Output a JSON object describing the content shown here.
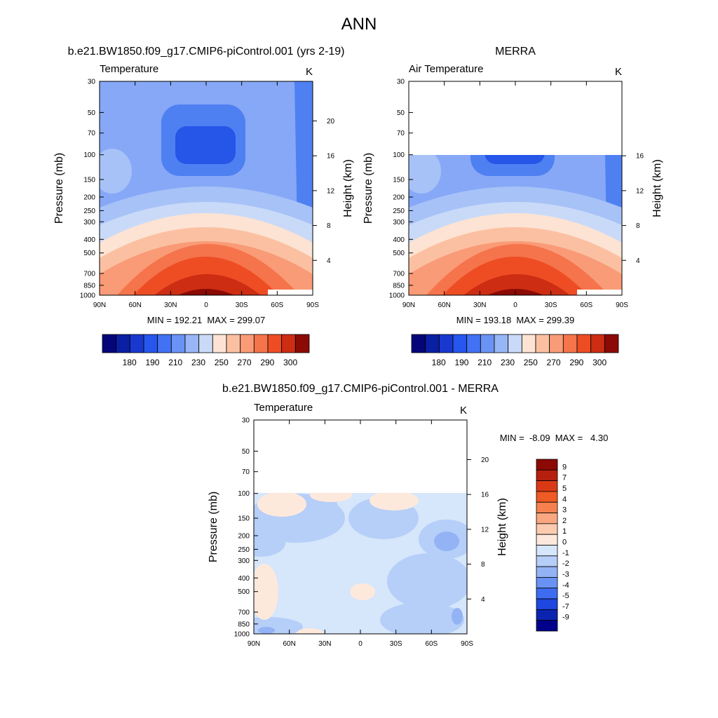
{
  "title": "ANN",
  "panels": [
    {
      "title": "b.e21.BW1850.f09_g17.CMIP6-piControl.001 (yrs 2-19)",
      "left_label": "Temperature",
      "units": "K",
      "y_label": "Pressure (mb)",
      "y2_label": "Height (km)",
      "pressure_ticks": [
        30,
        50,
        70,
        100,
        150,
        200,
        250,
        300,
        400,
        500,
        700,
        850,
        1000
      ],
      "height_ticks": [
        20,
        16,
        12,
        8,
        4
      ],
      "x_ticks": [
        "90N",
        "60N",
        "30N",
        "0",
        "30S",
        "60S",
        "90S"
      ],
      "stats": "MIN = 192.21  MAX = 299.07",
      "colorbar": {
        "colors": [
          "#05057a",
          "#0b1fa3",
          "#1838cf",
          "#2756ee",
          "#4272f3",
          "#6b93f5",
          "#98b6f6",
          "#c9daf8",
          "#fce3d3",
          "#fbc0a2",
          "#f99b76",
          "#f5744b",
          "#ee4d24",
          "#cc2d13",
          "#8b0a05"
        ],
        "labels": [
          180,
          190,
          210,
          230,
          250,
          270,
          290,
          300
        ]
      }
    },
    {
      "title": "MERRA",
      "left_label": "Air Temperature",
      "units": "K",
      "y_label": "Pressure (mb)",
      "y2_label": "Height (km)",
      "pressure_ticks": [
        30,
        50,
        70,
        100,
        150,
        200,
        250,
        300,
        400,
        500,
        700,
        850,
        1000
      ],
      "height_ticks": [
        16,
        12,
        8,
        4
      ],
      "x_ticks": [
        "90N",
        "60N",
        "30N",
        "0",
        "30S",
        "60S",
        "90S"
      ],
      "stats": "MIN = 193.18  MAX = 299.39",
      "colorbar": {
        "colors": [
          "#05057a",
          "#0b1fa3",
          "#1838cf",
          "#2756ee",
          "#4272f3",
          "#6b93f5",
          "#98b6f6",
          "#c9daf8",
          "#fce3d3",
          "#fbc0a2",
          "#f99b76",
          "#f5744b",
          "#ee4d24",
          "#cc2d13",
          "#8b0a05"
        ],
        "labels": [
          180,
          190,
          210,
          230,
          250,
          270,
          290,
          300
        ]
      }
    },
    {
      "title": "b.e21.BW1850.f09_g17.CMIP6-piControl.001 - MERRA",
      "left_label": "Temperature",
      "units": "K",
      "y_label": "Pressure (mb)",
      "y2_label": "Height (km)",
      "pressure_ticks": [
        30,
        50,
        70,
        100,
        150,
        200,
        250,
        300,
        400,
        500,
        700,
        850,
        1000
      ],
      "height_ticks": [
        20,
        16,
        12,
        8,
        4
      ],
      "x_ticks": [
        "90N",
        "60N",
        "30N",
        "0",
        "30S",
        "60S",
        "90S"
      ],
      "stats": "MIN =  -8.09  MAX =   4.30",
      "colorbar": {
        "colors": [
          "#8b0a05",
          "#b5200e",
          "#d93a15",
          "#f05a25",
          "#f5814f",
          "#f9a781",
          "#fbcbb0",
          "#fde9dc",
          "#d6e6fb",
          "#b6cff8",
          "#93b3f5",
          "#6a92f3",
          "#3d6cf0",
          "#1d47df",
          "#0b24b0",
          "#00008a"
        ],
        "labels": [
          9,
          7,
          5,
          4,
          3,
          2,
          1,
          0,
          -1,
          -2,
          -3,
          -4,
          -5,
          -7,
          -9
        ]
      }
    }
  ]
}
